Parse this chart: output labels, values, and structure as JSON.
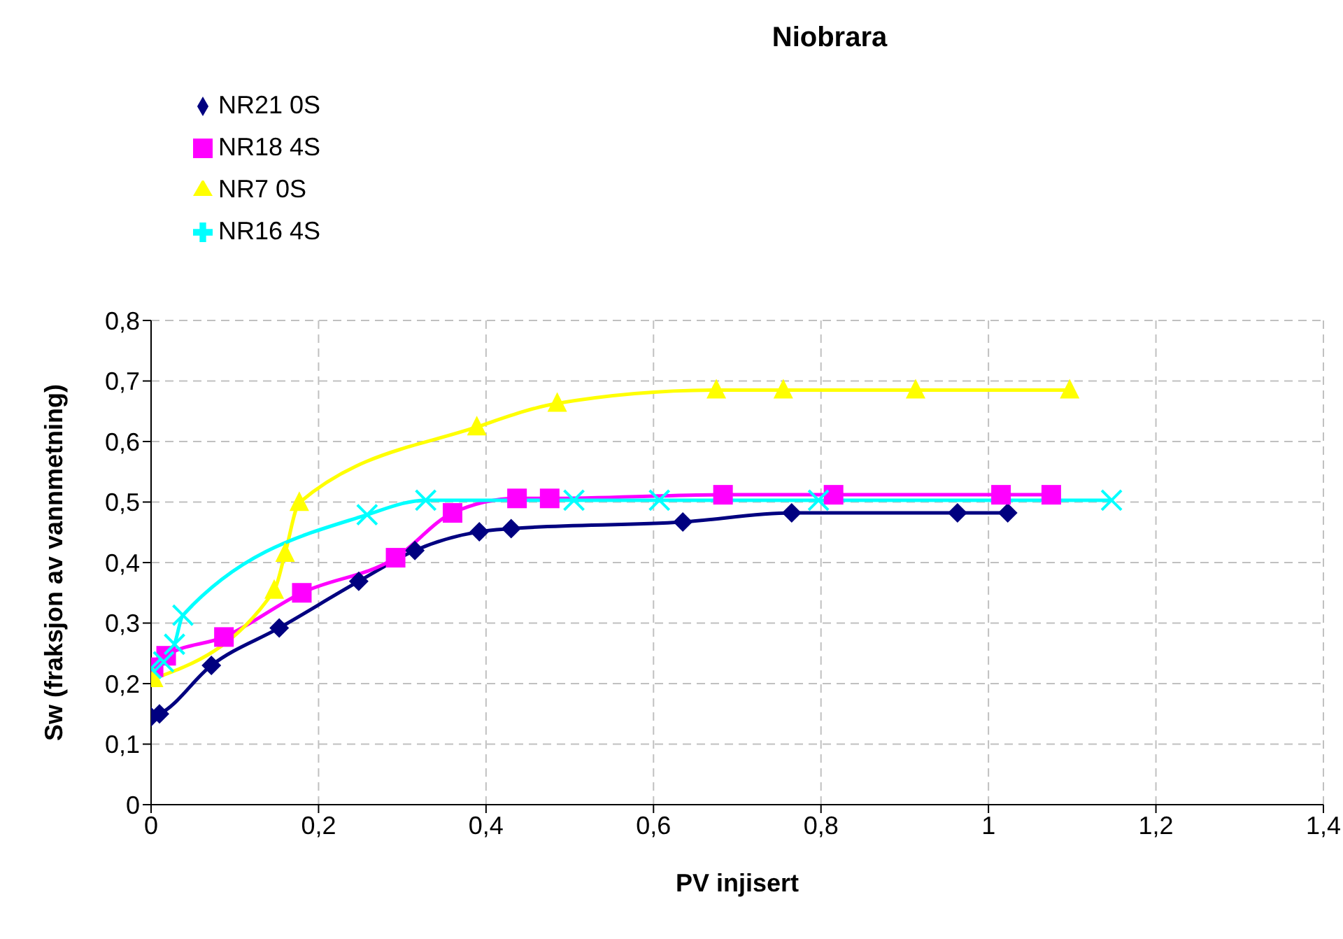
{
  "chart_data": {
    "type": "line",
    "title": "Niobrara",
    "xlabel": "PV injisert",
    "ylabel": "Sw (fraksjon av vannmetning)",
    "xlim": [
      0,
      1.4
    ],
    "xticks": [
      0,
      {
        "value": 0.2,
        "label": "0,2"
      },
      {
        "value": 0.4,
        "label": "0,4"
      },
      {
        "value": 0.6,
        "label": "0,6"
      },
      {
        "value": 0.8,
        "label": "0,8"
      },
      1,
      {
        "value": 1.2,
        "label": "1,2"
      },
      {
        "value": 1.4,
        "label": "1,4"
      }
    ],
    "ylim": [
      0,
      0.8
    ],
    "yticks": [
      0,
      {
        "value": 0.1,
        "label": "0,1"
      },
      {
        "value": 0.2,
        "label": "0,2"
      },
      {
        "value": 0.3,
        "label": "0,3"
      },
      {
        "value": 0.4,
        "label": "0,4"
      },
      {
        "value": 0.5,
        "label": "0,5"
      },
      {
        "value": 0.6,
        "label": "0,6"
      },
      {
        "value": 0.7,
        "label": "0,7"
      },
      {
        "value": 0.8,
        "label": "0,8"
      }
    ],
    "grid": true,
    "legend": "top left",
    "line_style": "solid",
    "series": [
      {
        "name": "NR21  0S",
        "color": "#000080",
        "marker": "diamond",
        "x": [
          0,
          0.01,
          0.072,
          0.153,
          0.248,
          0.315,
          0.392,
          0.43,
          0.635,
          0.765,
          0.963,
          1.023
        ],
        "values": [
          0.145,
          0.15,
          0.23,
          0.292,
          0.369,
          0.42,
          0.451,
          0.456,
          0.467,
          0.482,
          0.482,
          0.482
        ]
      },
      {
        "name": "NR18  4S",
        "color": "#ff00ff",
        "marker": "square",
        "x": [
          0.003,
          0.018,
          0.087,
          0.18,
          0.292,
          0.36,
          0.437,
          0.476,
          0.683,
          0.815,
          1.015,
          1.075
        ],
        "values": [
          0.227,
          0.246,
          0.277,
          0.35,
          0.408,
          0.482,
          0.506,
          0.506,
          0.512,
          0.512,
          0.512,
          0.512
        ]
      },
      {
        "name": "NR7  0S",
        "color": "#ffff00",
        "marker": "triangle",
        "x": [
          0.003,
          0.147,
          0.16,
          0.177,
          0.389,
          0.485,
          0.675,
          0.755,
          0.913,
          1.097
        ],
        "values": [
          0.208,
          0.354,
          0.415,
          0.499,
          0.624,
          0.663,
          0.685,
          0.685,
          0.685,
          0.685
        ]
      },
      {
        "name": "NR16  4S",
        "color": "#00ffff",
        "marker": "cross",
        "x": [
          0,
          0.015,
          0.028,
          0.038,
          0.258,
          0.328,
          0.505,
          0.607,
          0.797,
          1.147
        ],
        "values": [
          0.225,
          0.236,
          0.265,
          0.313,
          0.479,
          0.503,
          0.503,
          0.503,
          0.503,
          0.503
        ]
      }
    ]
  }
}
